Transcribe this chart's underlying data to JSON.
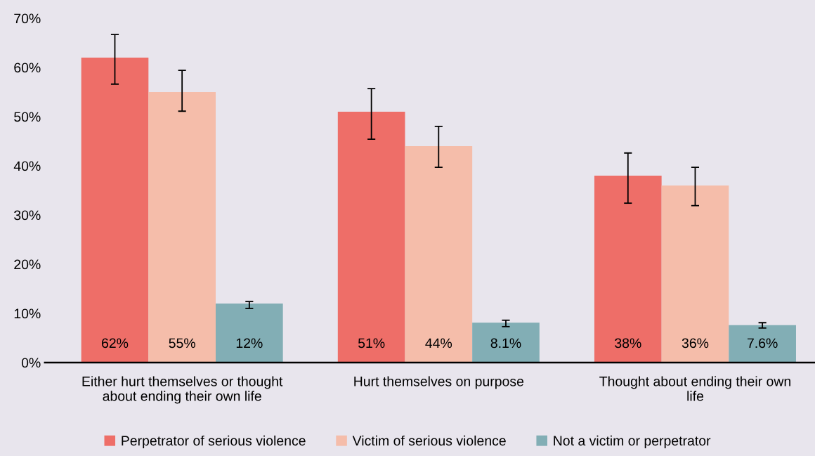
{
  "chart_data": {
    "type": "bar",
    "categories": [
      "Either hurt themselves or thought about ending their own life",
      "Hurt themselves on purpose",
      "Thought about ending their own life"
    ],
    "series": [
      {
        "name": "Perpetrator of serious violence",
        "color": "#ee6e68",
        "values": [
          62,
          51,
          38
        ],
        "errors": [
          [
            56.6,
            66.7
          ],
          [
            45.4,
            55.7
          ],
          [
            32.4,
            42.6
          ]
        ],
        "value_labels": [
          "62%",
          "51%",
          "38%"
        ]
      },
      {
        "name": "Victim of serious violence",
        "color": "#f5bdaa",
        "values": [
          55,
          44,
          36
        ],
        "errors": [
          [
            51.1,
            59.4
          ],
          [
            39.7,
            48.0
          ],
          [
            31.9,
            39.7
          ]
        ],
        "value_labels": [
          "55%",
          "44%",
          "36%"
        ]
      },
      {
        "name": "Not a victim or perpetrator",
        "color": "#82aeb5",
        "values": [
          12,
          8.1,
          7.6
        ],
        "errors": [
          [
            11.0,
            12.4
          ],
          [
            7.3,
            8.6
          ],
          [
            7.0,
            8.1
          ]
        ],
        "value_labels": [
          "12%",
          "8.1%",
          "7.6%"
        ]
      }
    ],
    "ylim": [
      0,
      70
    ],
    "yticks": [
      {
        "value": 0,
        "label": "0%"
      },
      {
        "value": 10,
        "label": "10%"
      },
      {
        "value": 20,
        "label": "20%"
      },
      {
        "value": 30,
        "label": "30%"
      },
      {
        "value": 40,
        "label": "40%"
      },
      {
        "value": 50,
        "label": "50%"
      },
      {
        "value": 60,
        "label": "60%"
      },
      {
        "value": 70,
        "label": "70%"
      }
    ],
    "grid": false,
    "legend": "bottom"
  }
}
